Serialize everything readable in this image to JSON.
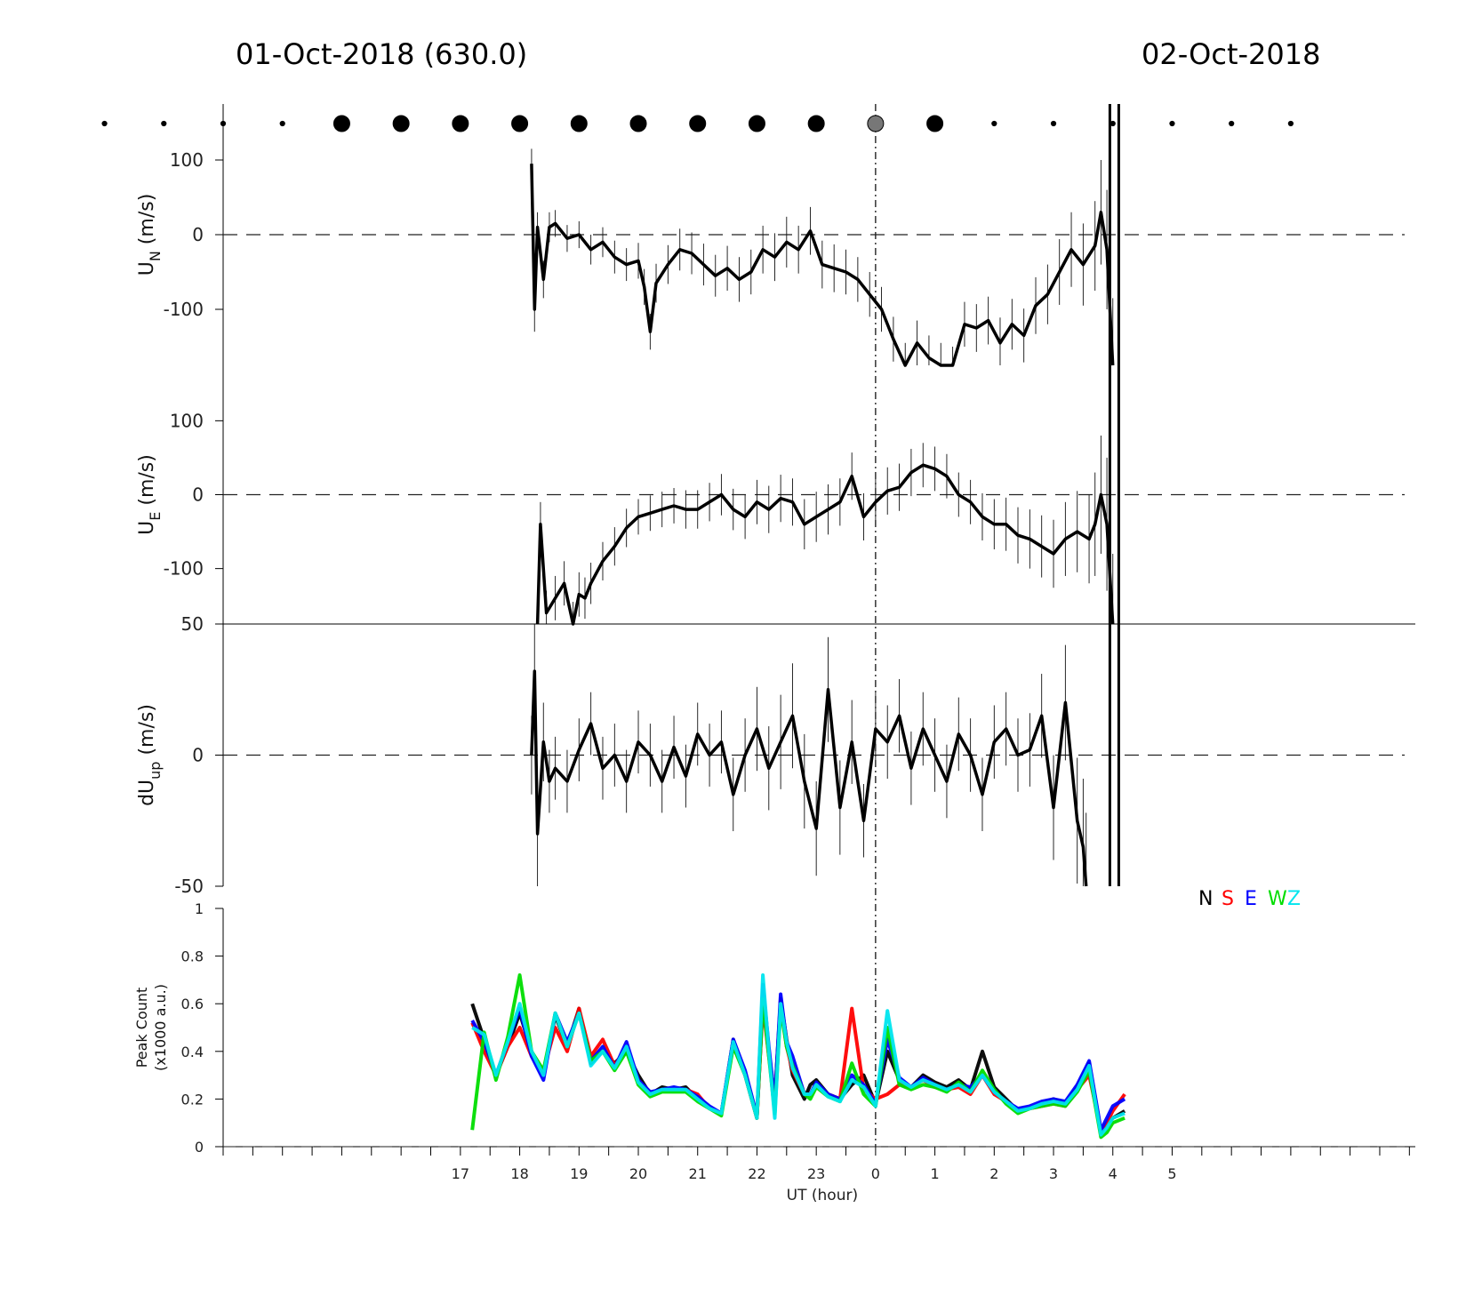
{
  "header": {
    "left_title": "01-Oct-2018 (630.0)",
    "right_title": "02-Oct-2018"
  },
  "colors": {
    "axis": "#000000",
    "N": "#000000",
    "S": "#ff0000",
    "E": "#0000ff",
    "W": "#00dd00",
    "Z": "#00e5ee",
    "marker_gray": "#777777"
  },
  "chart_data": [
    {
      "type": "line",
      "id": "un",
      "ylabel_main": "U",
      "ylabel_sub": "N",
      "ylabel_unit": "(m/s)",
      "ylim": [
        -175,
        175
      ],
      "yticks": [
        100,
        0,
        -100
      ],
      "ytick_labels": [
        "100",
        "0",
        "-100"
      ],
      "zero_line": true,
      "marker_times": [
        -6.0,
        -5.0,
        -4.0,
        -3.0,
        -2.0,
        -1.0,
        0.0,
        1.0,
        2.0,
        3.0,
        4.0,
        5.0,
        6.0,
        7.0,
        8.0,
        9.0,
        10.0,
        11.0,
        12.0,
        13.0,
        14.0
      ],
      "marker_sizes": [
        "small",
        "small",
        "small",
        "small",
        "large",
        "large",
        "large",
        "large",
        "large",
        "large",
        "large",
        "large",
        "large",
        "large",
        "large",
        "small",
        "small",
        "small",
        "small",
        "small",
        "small"
      ],
      "marker_gray_time": 7.0,
      "x": [
        -5.8,
        -5.75,
        -5.7,
        -5.6,
        -5.5,
        -5.4,
        -5.2,
        -5.0,
        -4.8,
        -4.6,
        -4.4,
        -4.2,
        -4.0,
        -3.9,
        -3.8,
        -3.7,
        -3.5,
        -3.3,
        -3.1,
        -2.9,
        -2.7,
        -2.5,
        -2.3,
        -2.1,
        -1.9,
        -1.7,
        -1.5,
        -1.3,
        -1.1,
        -0.9,
        -0.7,
        -0.5,
        -0.3,
        -0.1,
        0.1,
        0.3,
        0.5,
        0.7,
        0.9,
        1.1,
        1.3,
        1.5,
        1.7,
        1.9,
        2.1,
        2.3,
        2.5,
        2.7,
        2.9,
        3.1,
        3.3,
        3.5,
        3.7,
        3.8,
        3.9,
        4.0
      ],
      "values": [
        95,
        -100,
        10,
        -60,
        10,
        15,
        -5,
        0,
        -20,
        -10,
        -30,
        -40,
        -35,
        -70,
        -130,
        -65,
        -40,
        -20,
        -25,
        -40,
        -55,
        -45,
        -60,
        -50,
        -20,
        -30,
        -10,
        -20,
        5,
        -40,
        -45,
        -50,
        -60,
        -80,
        -100,
        -140,
        -175,
        -145,
        -165,
        -175,
        -180,
        -120,
        -125,
        -115,
        -145,
        -120,
        -135,
        -95,
        -80,
        -50,
        -20,
        -40,
        -15,
        30,
        -20,
        -175
      ],
      "err": [
        20,
        30,
        20,
        25,
        20,
        18,
        18,
        18,
        20,
        20,
        22,
        22,
        24,
        24,
        24,
        26,
        26,
        28,
        28,
        28,
        28,
        30,
        30,
        30,
        32,
        32,
        34,
        32,
        32,
        32,
        32,
        30,
        30,
        30,
        30,
        30,
        30,
        30,
        30,
        30,
        30,
        30,
        32,
        32,
        34,
        34,
        36,
        38,
        40,
        44,
        50,
        55,
        60,
        70,
        80,
        90
      ]
    },
    {
      "type": "line",
      "id": "ue",
      "ylabel_main": "U",
      "ylabel_sub": "E",
      "ylabel_unit": "(m/s)",
      "ylim": [
        -175,
        175
      ],
      "yticks": [
        100,
        0,
        -100
      ],
      "ytick_labels": [
        "100",
        "0",
        "-100"
      ],
      "zero_line": true,
      "x": [
        -5.7,
        -5.65,
        -5.55,
        -5.4,
        -5.25,
        -5.1,
        -5.0,
        -4.9,
        -4.8,
        -4.6,
        -4.4,
        -4.2,
        -4.0,
        -3.8,
        -3.6,
        -3.4,
        -3.2,
        -3.0,
        -2.8,
        -2.6,
        -2.4,
        -2.2,
        -2.0,
        -1.8,
        -1.6,
        -1.4,
        -1.2,
        -1.0,
        -0.8,
        -0.6,
        -0.4,
        -0.2,
        0.0,
        0.2,
        0.4,
        0.6,
        0.8,
        1.0,
        1.2,
        1.4,
        1.6,
        1.8,
        2.0,
        2.2,
        2.4,
        2.6,
        2.8,
        3.0,
        3.2,
        3.4,
        3.6,
        3.7,
        3.8,
        3.9,
        4.0
      ],
      "values": [
        -175,
        -40,
        -160,
        -140,
        -120,
        -175,
        -135,
        -140,
        -120,
        -90,
        -70,
        -45,
        -30,
        -25,
        -20,
        -15,
        -20,
        -20,
        -10,
        0,
        -20,
        -30,
        -10,
        -20,
        -5,
        -10,
        -40,
        -30,
        -20,
        -10,
        25,
        -30,
        -10,
        5,
        10,
        30,
        40,
        35,
        25,
        0,
        -10,
        -30,
        -40,
        -40,
        -55,
        -60,
        -70,
        -80,
        -60,
        -50,
        -60,
        -40,
        0,
        -40,
        -175
      ],
      "err": [
        30,
        30,
        30,
        30,
        30,
        30,
        30,
        28,
        28,
        26,
        26,
        26,
        24,
        24,
        24,
        24,
        26,
        26,
        26,
        28,
        28,
        30,
        30,
        32,
        32,
        32,
        34,
        34,
        34,
        32,
        32,
        32,
        32,
        32,
        32,
        32,
        30,
        30,
        30,
        30,
        30,
        32,
        34,
        36,
        38,
        40,
        42,
        46,
        50,
        55,
        60,
        70,
        80,
        90,
        95
      ]
    },
    {
      "type": "line",
      "id": "dup",
      "ylabel_main": "dU",
      "ylabel_sub": "up",
      "ylabel_unit": "(m/s)",
      "ylim": [
        -50,
        50
      ],
      "yticks": [
        50,
        0,
        -50
      ],
      "ytick_labels": [
        "50",
        "0",
        "-50"
      ],
      "zero_line": true,
      "x": [
        -5.8,
        -5.75,
        -5.7,
        -5.6,
        -5.5,
        -5.4,
        -5.2,
        -5.0,
        -4.8,
        -4.6,
        -4.4,
        -4.2,
        -4.0,
        -3.8,
        -3.6,
        -3.4,
        -3.2,
        -3.0,
        -2.8,
        -2.6,
        -2.4,
        -2.2,
        -2.0,
        -1.8,
        -1.6,
        -1.4,
        -1.2,
        -1.0,
        -0.8,
        -0.6,
        -0.4,
        -0.2,
        0.0,
        0.2,
        0.4,
        0.6,
        0.8,
        1.0,
        1.2,
        1.4,
        1.6,
        1.8,
        2.0,
        2.2,
        2.4,
        2.6,
        2.8,
        3.0,
        3.2,
        3.4,
        3.5,
        3.55
      ],
      "values": [
        0,
        32,
        -30,
        5,
        -10,
        -5,
        -10,
        2,
        12,
        -5,
        0,
        -10,
        5,
        0,
        -10,
        3,
        -8,
        8,
        0,
        5,
        -15,
        0,
        10,
        -5,
        5,
        15,
        -10,
        -28,
        25,
        -20,
        5,
        -25,
        10,
        5,
        15,
        -5,
        10,
        0,
        -10,
        8,
        0,
        -15,
        5,
        10,
        0,
        2,
        15,
        -20,
        20,
        -25,
        -35,
        -50
      ],
      "err": [
        15,
        20,
        20,
        15,
        12,
        12,
        12,
        12,
        12,
        12,
        12,
        12,
        12,
        12,
        12,
        12,
        12,
        12,
        12,
        12,
        14,
        14,
        16,
        16,
        18,
        20,
        18,
        18,
        20,
        18,
        16,
        14,
        14,
        14,
        14,
        14,
        14,
        14,
        14,
        14,
        14,
        14,
        14,
        14,
        14,
        14,
        16,
        20,
        22,
        24,
        26,
        28
      ]
    },
    {
      "type": "line",
      "id": "peak",
      "ylabel_line1": "Peak Count",
      "ylabel_line2": "(x1000 a.u.)",
      "ylim": [
        0,
        1
      ],
      "yticks": [
        0,
        0.2,
        0.4,
        0.6,
        0.8,
        1
      ],
      "ytick_labels": [
        "0",
        "0.2",
        "0.4",
        "0.6",
        "0.8",
        "1"
      ],
      "xlabel": "UT (hour)",
      "xtick_values": [
        -7,
        -6,
        -5,
        -4,
        -3,
        -2,
        -1,
        0,
        1,
        2,
        3,
        4,
        5
      ],
      "xtick_labels": [
        "17",
        "18",
        "19",
        "20",
        "21",
        "22",
        "23",
        "0",
        "1",
        "2",
        "3",
        "4",
        "5"
      ],
      "xlim": [
        -11,
        9.1
      ],
      "legend": [
        "N",
        "S",
        "E",
        "W",
        "Z"
      ],
      "legend_position": "top-right",
      "x": [
        -6.8,
        -6.6,
        -6.4,
        -6.2,
        -6.0,
        -5.8,
        -5.6,
        -5.4,
        -5.2,
        -5.0,
        -4.8,
        -4.6,
        -4.4,
        -4.2,
        -4.0,
        -3.8,
        -3.6,
        -3.4,
        -3.2,
        -3.0,
        -2.8,
        -2.6,
        -2.4,
        -2.2,
        -2.0,
        -1.9,
        -1.8,
        -1.7,
        -1.6,
        -1.5,
        -1.4,
        -1.2,
        -1.1,
        -1.0,
        -0.8,
        -0.6,
        -0.4,
        -0.2,
        0.0,
        0.2,
        0.4,
        0.6,
        0.8,
        1.0,
        1.2,
        1.4,
        1.6,
        1.8,
        2.0,
        2.2,
        2.4,
        2.6,
        2.8,
        3.0,
        3.2,
        3.4,
        3.6,
        3.8,
        3.9,
        4.0,
        4.2
      ],
      "series": [
        {
          "name": "N",
          "values": [
            0.6,
            0.45,
            0.3,
            0.42,
            0.56,
            0.4,
            0.3,
            0.55,
            0.42,
            0.58,
            0.35,
            0.4,
            0.35,
            0.4,
            0.3,
            0.22,
            0.25,
            0.24,
            0.25,
            0.2,
            0.16,
            0.14,
            0.45,
            0.3,
            0.12,
            0.6,
            0.4,
            0.2,
            0.62,
            0.45,
            0.3,
            0.2,
            0.26,
            0.28,
            0.22,
            0.2,
            0.26,
            0.3,
            0.18,
            0.4,
            0.28,
            0.25,
            0.3,
            0.27,
            0.25,
            0.28,
            0.24,
            0.4,
            0.25,
            0.2,
            0.15,
            0.16,
            0.18,
            0.2,
            0.18,
            0.25,
            0.35,
            0.06,
            0.1,
            0.12,
            0.15
          ]
        },
        {
          "name": "S",
          "values": [
            0.52,
            0.4,
            0.3,
            0.42,
            0.5,
            0.38,
            0.32,
            0.5,
            0.4,
            0.58,
            0.38,
            0.45,
            0.34,
            0.42,
            0.28,
            0.22,
            0.24,
            0.24,
            0.24,
            0.22,
            0.16,
            0.14,
            0.43,
            0.3,
            0.12,
            0.6,
            0.38,
            0.2,
            0.6,
            0.42,
            0.32,
            0.22,
            0.22,
            0.26,
            0.22,
            0.2,
            0.58,
            0.24,
            0.2,
            0.22,
            0.26,
            0.25,
            0.28,
            0.25,
            0.24,
            0.25,
            0.22,
            0.3,
            0.22,
            0.19,
            0.15,
            0.16,
            0.17,
            0.18,
            0.17,
            0.24,
            0.3,
            0.07,
            0.1,
            0.15,
            0.22
          ]
        },
        {
          "name": "E",
          "values": [
            0.53,
            0.44,
            0.3,
            0.44,
            0.58,
            0.38,
            0.28,
            0.56,
            0.44,
            0.56,
            0.36,
            0.42,
            0.33,
            0.44,
            0.28,
            0.23,
            0.24,
            0.25,
            0.24,
            0.21,
            0.17,
            0.14,
            0.45,
            0.32,
            0.13,
            0.68,
            0.42,
            0.19,
            0.64,
            0.44,
            0.38,
            0.22,
            0.22,
            0.27,
            0.22,
            0.2,
            0.3,
            0.26,
            0.18,
            0.45,
            0.29,
            0.25,
            0.29,
            0.26,
            0.24,
            0.26,
            0.25,
            0.3,
            0.23,
            0.19,
            0.16,
            0.17,
            0.19,
            0.2,
            0.19,
            0.26,
            0.36,
            0.07,
            0.12,
            0.17,
            0.2
          ]
        },
        {
          "name": "W",
          "values": [
            0.07,
            0.48,
            0.28,
            0.46,
            0.72,
            0.4,
            0.32,
            0.56,
            0.42,
            0.56,
            0.36,
            0.4,
            0.32,
            0.4,
            0.26,
            0.21,
            0.23,
            0.23,
            0.23,
            0.19,
            0.16,
            0.13,
            0.42,
            0.3,
            0.12,
            0.62,
            0.38,
            0.14,
            0.58,
            0.42,
            0.34,
            0.22,
            0.2,
            0.25,
            0.21,
            0.19,
            0.35,
            0.22,
            0.17,
            0.5,
            0.26,
            0.24,
            0.26,
            0.25,
            0.23,
            0.27,
            0.23,
            0.32,
            0.24,
            0.18,
            0.14,
            0.16,
            0.17,
            0.18,
            0.17,
            0.23,
            0.32,
            0.04,
            0.06,
            0.1,
            0.12
          ]
        },
        {
          "name": "Z",
          "values": [
            0.5,
            0.47,
            0.3,
            0.44,
            0.6,
            0.4,
            0.3,
            0.56,
            0.42,
            0.56,
            0.34,
            0.4,
            0.33,
            0.42,
            0.27,
            0.22,
            0.24,
            0.24,
            0.24,
            0.2,
            0.16,
            0.14,
            0.44,
            0.3,
            0.12,
            0.72,
            0.4,
            0.12,
            0.6,
            0.44,
            0.33,
            0.22,
            0.22,
            0.26,
            0.21,
            0.19,
            0.28,
            0.25,
            0.17,
            0.57,
            0.28,
            0.25,
            0.28,
            0.26,
            0.24,
            0.26,
            0.23,
            0.3,
            0.23,
            0.19,
            0.15,
            0.16,
            0.18,
            0.19,
            0.18,
            0.24,
            0.34,
            0.05,
            0.08,
            0.12,
            0.14
          ]
        }
      ]
    }
  ]
}
